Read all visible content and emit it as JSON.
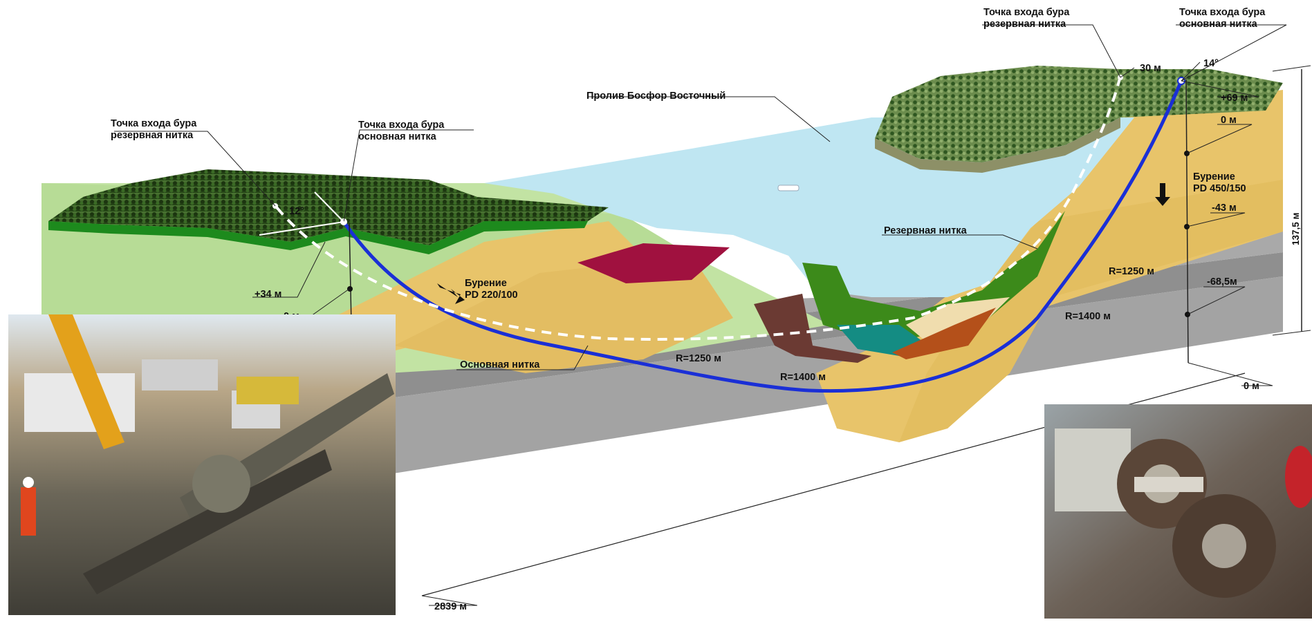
{
  "diagram": {
    "strait_name": "Пролив Босфор Восточный",
    "left_bank": {
      "entry_reserve": [
        "Точка входа бура",
        "резервная нитка"
      ],
      "entry_main": [
        "Точка входа бура",
        "основная нитка"
      ],
      "angle": "12°",
      "elevation_top": "+34 м",
      "elevation_zero": "0 м",
      "drilling": [
        "Бурение",
        "PD 220/100"
      ]
    },
    "right_bank": {
      "entry_reserve": [
        "Точка входа бура",
        "резервная нитка"
      ],
      "entry_main": [
        "Точка входа бура",
        "основная нитка"
      ],
      "offset": "30 м",
      "angle": "14°",
      "elevation_top": "+69 м",
      "elevation_zero": "0 м",
      "depth_1": "-43 м",
      "depth_2": "-68,5м",
      "depth_bottom": "0 м",
      "drilling": [
        "Бурение",
        "PD 450/150"
      ],
      "height": "137,5 м"
    },
    "main_line_label": "Основная нитка",
    "reserve_line_label": "Резервная нитка",
    "radius_left_1": "R=1250 м",
    "radius_left_2": "R=1400 м",
    "radius_right_1": "R=1250 м",
    "radius_right_2": "R=1400 м",
    "total_length": "2839 м",
    "colors": {
      "water": "#bfe6f2",
      "sand": "#e8c46a",
      "light_soil": "#bfe3a0",
      "bedrock": "#a6a6a6",
      "main_line": "#1a2fd6",
      "reserve_line": "#ffffff",
      "forest": "#2f5a1f"
    }
  }
}
